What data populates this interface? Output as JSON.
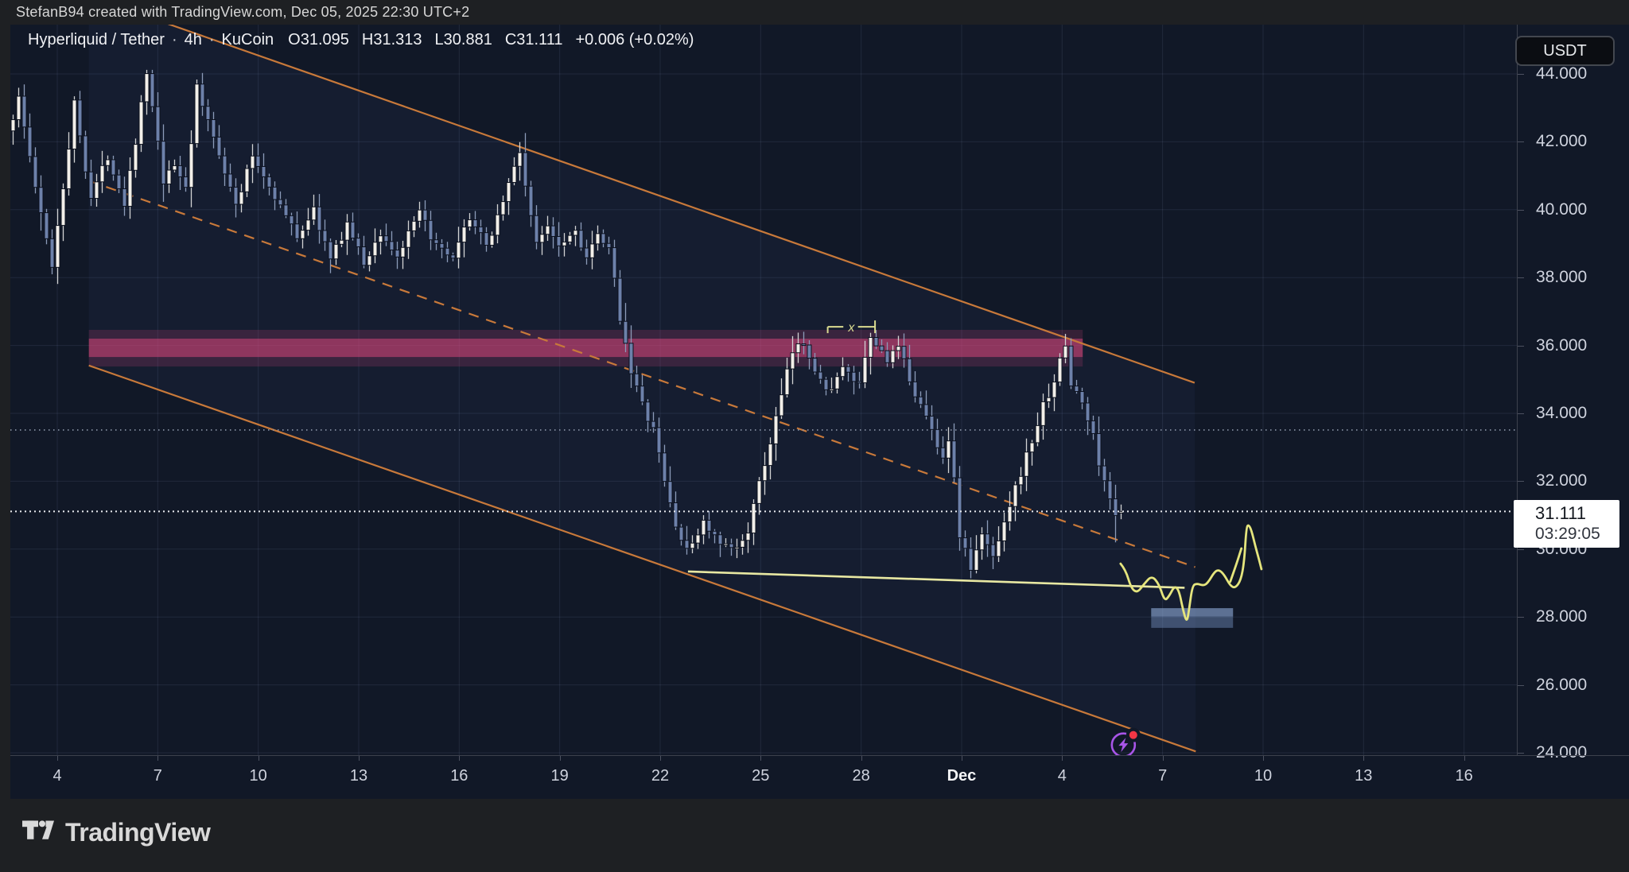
{
  "attribution": "StefanB94 created with TradingView.com, Dec 05, 2025 22:30 UTC+2",
  "header": {
    "symbol": "Hyperliquid / Tether",
    "interval": "4h",
    "exchange": "KuCoin",
    "open": "O31.095",
    "high": "H31.313",
    "low": "L30.881",
    "close": "C31.111",
    "change": "+0.006 (+0.02%)"
  },
  "axis": {
    "currency_button": "USDT",
    "last_price": "31.111",
    "countdown": "03:29:05",
    "price_labels": [
      "44.000",
      "42.000",
      "40.000",
      "38.000",
      "36.000",
      "34.000",
      "32.000",
      "30.000",
      "28.000",
      "26.000",
      "24.000"
    ],
    "price_values": [
      44,
      42,
      40,
      38,
      36,
      34,
      32,
      30,
      28,
      26,
      24
    ],
    "time_labels": [
      "4",
      "7",
      "10",
      "13",
      "16",
      "19",
      "22",
      "25",
      "28",
      "Dec",
      "4",
      "7",
      "10",
      "13",
      "16"
    ],
    "time_bold": [
      false,
      false,
      false,
      false,
      false,
      false,
      false,
      false,
      false,
      true,
      false,
      false,
      false,
      false,
      false
    ]
  },
  "footer": {
    "brand": "TradingView"
  },
  "colors": {
    "pane_bg": "#111827",
    "frame_bg": "#1e2023",
    "grid": "rgba(150,165,200,0.13)",
    "up_body": "#f2efe9",
    "down_body": "#6d81aa",
    "candle_border": "#0b101d",
    "up_wick": "#d2d3d4",
    "down_wick": "#8c9bb9",
    "channel_line": "#c8793a",
    "channel_fill": "rgba(90,130,220,0.055)",
    "zone_outer": "rgba(220,70,125,0.18)",
    "zone_core": "rgba(220,70,125,0.52)",
    "trendline": "#e8e8a2",
    "projection": "#e5e57d",
    "measure": "#dadc90",
    "demand_box_fill": "rgba(125,155,205,0.42)",
    "demand_box_top": "rgba(155,180,222,0.35)",
    "level_minor": "#8e98ab",
    "level_current": "#e8eaee",
    "icon_purple": "#a855e8",
    "icon_red_dot": "#f23645"
  },
  "chart_data": {
    "type": "candlestick",
    "title": "Hyperliquid / Tether · 4h · KuCoin",
    "symbol": "Hyperliquid / Tether",
    "exchange": "KuCoin",
    "interval": "4h",
    "quote_currency": "USDT",
    "last_bar": {
      "open": 31.095,
      "high": 31.313,
      "low": 30.881,
      "close": 31.111,
      "change": 0.006,
      "change_pct": 0.02
    },
    "ylim": [
      23.9,
      45.45
    ],
    "bars_total": 200,
    "price_path_anchors": [
      [
        0,
        42.2
      ],
      [
        2,
        43.3
      ],
      [
        6,
        39.8
      ],
      [
        8,
        38.4
      ],
      [
        12,
        43.1
      ],
      [
        15,
        40.4
      ],
      [
        18,
        41.6
      ],
      [
        21,
        40.2
      ],
      [
        25,
        44.0
      ],
      [
        28,
        40.8
      ],
      [
        30,
        41.3
      ],
      [
        32,
        40.7
      ],
      [
        34,
        43.5
      ],
      [
        38,
        41.7
      ],
      [
        41,
        40.1
      ],
      [
        44,
        41.6
      ],
      [
        48,
        40.4
      ],
      [
        52,
        39.2
      ],
      [
        55,
        40.0
      ],
      [
        58,
        38.5
      ],
      [
        61,
        39.6
      ],
      [
        64,
        38.4
      ],
      [
        67,
        39.3
      ],
      [
        70,
        38.6
      ],
      [
        74,
        39.9
      ],
      [
        77,
        38.9
      ],
      [
        80,
        38.5
      ],
      [
        83,
        39.8
      ],
      [
        86,
        38.9
      ],
      [
        89,
        40.3
      ],
      [
        92,
        41.7
      ],
      [
        95,
        38.9
      ],
      [
        97,
        39.6
      ],
      [
        99,
        39.0
      ],
      [
        102,
        39.4
      ],
      [
        104,
        38.6
      ],
      [
        106,
        39.2
      ],
      [
        108,
        38.8
      ],
      [
        110,
        36.9
      ],
      [
        112,
        35.3
      ],
      [
        114,
        34.2
      ],
      [
        116,
        33.5
      ],
      [
        118,
        32.0
      ],
      [
        120,
        30.7
      ],
      [
        122,
        29.9
      ],
      [
        125,
        30.8
      ],
      [
        128,
        30.1
      ],
      [
        131,
        30.0
      ],
      [
        133,
        30.6
      ],
      [
        136,
        32.5
      ],
      [
        139,
        34.5
      ],
      [
        141,
        35.8
      ],
      [
        143,
        36.1
      ],
      [
        147,
        34.6
      ],
      [
        150,
        35.3
      ],
      [
        153,
        34.8
      ],
      [
        155,
        36.2
      ],
      [
        158,
        35.6
      ],
      [
        160,
        35.9
      ],
      [
        163,
        34.6
      ],
      [
        166,
        33.5
      ],
      [
        168,
        32.7
      ],
      [
        169,
        33.3
      ],
      [
        171,
        30.5
      ],
      [
        173,
        29.4
      ],
      [
        175,
        30.4
      ],
      [
        177,
        29.8
      ],
      [
        179,
        30.9
      ],
      [
        181,
        31.8
      ],
      [
        184,
        33.2
      ],
      [
        186,
        34.2
      ],
      [
        188,
        35.0
      ],
      [
        190,
        36.0
      ],
      [
        191,
        34.9
      ],
      [
        193,
        34.3
      ],
      [
        195,
        33.3
      ],
      [
        197,
        31.9
      ],
      [
        198,
        31.5
      ],
      [
        199,
        31.1
      ]
    ],
    "annotations": {
      "channel": {
        "type": "parallel-channel",
        "upper": [
          [
            13.6,
            46.29
          ],
          [
            212.2,
            34.9
          ]
        ],
        "middle_dashed": [
          [
            13.6,
            40.85
          ],
          [
            212.3,
            29.47
          ]
        ],
        "lower": [
          [
            13.6,
            35.41
          ],
          [
            212.4,
            24.04
          ]
        ]
      },
      "supply_zone": {
        "type": "price-range-box",
        "from_bar": 13.6,
        "to_bar": 192.1,
        "outer_price_top": 36.46,
        "outer_price_bottom": 35.38,
        "core_price_top": 36.2,
        "core_price_bottom": 35.66
      },
      "support_trendline": {
        "type": "trend-line",
        "points": [
          [
            121.2,
            29.34
          ],
          [
            210.4,
            28.86
          ]
        ]
      },
      "measure_bracket": {
        "type": "measurement",
        "label": "x",
        "from_bar": 146.3,
        "to_bar": 154.8,
        "price": 36.55
      },
      "projection_path": {
        "type": "hand-drawn-brush",
        "points": [
          [
            198.9,
            29.57
          ],
          [
            199.8,
            29.39
          ],
          [
            200.8,
            28.85
          ],
          [
            201.9,
            28.71
          ],
          [
            203.1,
            28.97
          ],
          [
            204.5,
            29.22
          ],
          [
            205.8,
            28.97
          ],
          [
            206.8,
            28.47
          ],
          [
            207.6,
            28.61
          ],
          [
            208.6,
            28.92
          ],
          [
            209.4,
            28.78
          ],
          [
            210.1,
            28.22
          ],
          [
            210.8,
            27.82
          ],
          [
            211.2,
            28.22
          ],
          [
            211.8,
            28.92
          ],
          [
            212.6,
            28.99
          ],
          [
            213.8,
            28.92
          ],
          [
            214.6,
            29.01
          ],
          [
            215.8,
            29.34
          ],
          [
            216.6,
            29.39
          ],
          [
            217.5,
            29.25
          ],
          [
            218.6,
            28.92
          ],
          [
            219.5,
            28.85
          ],
          [
            220.5,
            29.08
          ],
          [
            221.1,
            29.62
          ],
          [
            221.5,
            30.65
          ],
          [
            221.9,
            30.72
          ],
          [
            222.4,
            30.56
          ],
          [
            223.1,
            30.09
          ],
          [
            223.8,
            29.67
          ],
          [
            224.2,
            29.41
          ]
        ],
        "inner_stroke": [
          [
            218.6,
            29.04
          ],
          [
            219.7,
            29.55
          ],
          [
            220.6,
            30.02
          ]
        ]
      },
      "demand_box": {
        "type": "rectangle",
        "from_bar": 204.4,
        "to_bar": 219.1,
        "price_top": 28.26,
        "price_bottom": 27.68
      },
      "levels": [
        {
          "price": 33.51,
          "style": "minor-dotted"
        },
        {
          "price": 31.111,
          "style": "current-price-dotted"
        }
      ],
      "flash_icon": {
        "type": "emoji-marker",
        "bar": 199.4,
        "price": 24.23,
        "glyph": "lightning-in-circle",
        "badge": "red-dot"
      }
    }
  }
}
